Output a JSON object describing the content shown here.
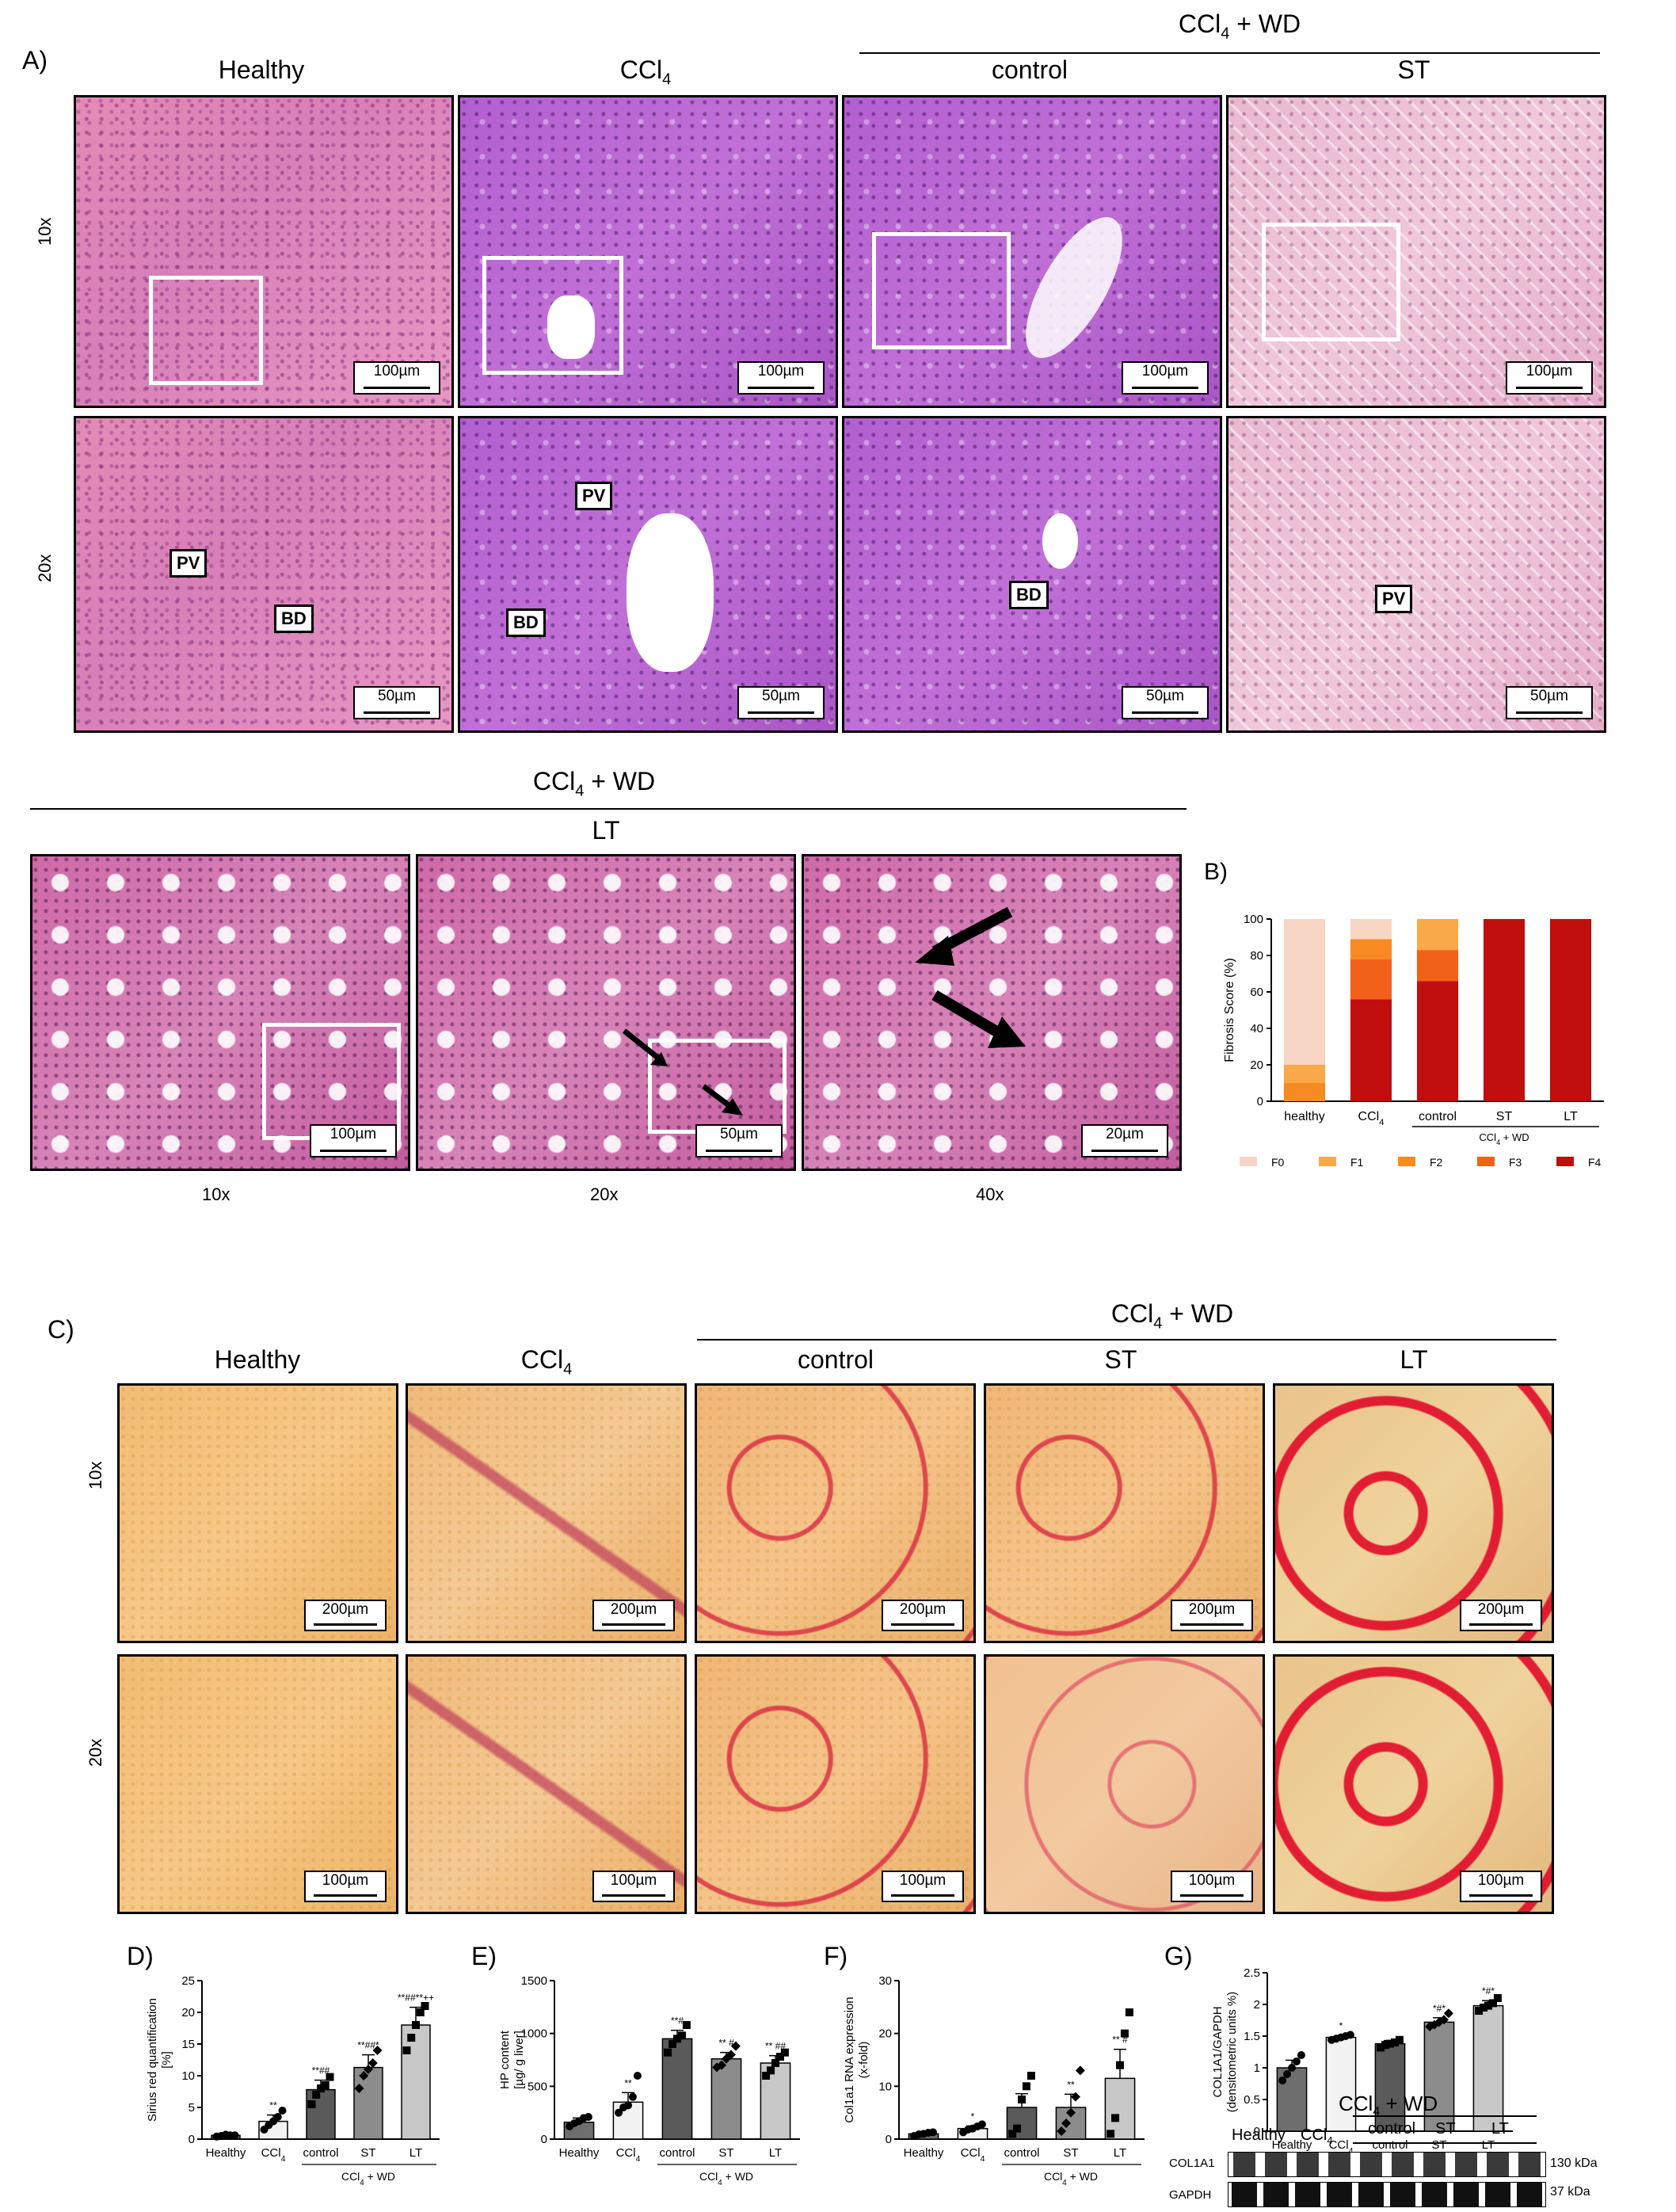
{
  "panelA": {
    "letter": "A)",
    "cols": [
      "Healthy",
      "CCl",
      "control",
      "ST"
    ],
    "ccl4_sub": "4",
    "group_label": "CCl",
    "group_suffix": " + WD",
    "rows": [
      "10x",
      "20x"
    ],
    "scale_10x": "100µm",
    "scale_20x": "50µm",
    "tags": {
      "pv": "PV",
      "bd": "BD"
    }
  },
  "panelA2": {
    "group_label": "CCl",
    "group_suffix": " + WD",
    "sub": "LT",
    "mags": [
      "10x",
      "20x",
      "40x"
    ],
    "scales": [
      "100µm",
      "50µm",
      "20µm"
    ]
  },
  "panelC": {
    "letter": "C)",
    "cols": [
      "Healthy",
      "CCl",
      "control",
      "ST",
      "LT"
    ],
    "group_label": "CCl",
    "group_suffix": " + WD",
    "rows": [
      "10x",
      "20x"
    ],
    "scale_10x": "200µm",
    "scale_20x": "100µm"
  },
  "chart_data": [
    {
      "panel": "B)",
      "type": "bar",
      "stacked": true,
      "ylabel": "Fibrosis Score (%)",
      "ylim": [
        0,
        100
      ],
      "yticks": [
        0,
        20,
        40,
        60,
        80,
        100
      ],
      "categories": [
        "healthy",
        "CCl4",
        "control",
        "ST",
        "LT"
      ],
      "group_label": "CCl4 + WD",
      "series": [
        {
          "name": "F0",
          "color": "#f7d5c4",
          "values": [
            80,
            11,
            0,
            0,
            0
          ]
        },
        {
          "name": "F1",
          "color": "#f9a94a",
          "values": [
            10,
            0,
            17,
            0,
            0
          ]
        },
        {
          "name": "F2",
          "color": "#f88a23",
          "values": [
            10,
            11,
            0,
            0,
            0
          ]
        },
        {
          "name": "F3",
          "color": "#f2611a",
          "values": [
            0,
            22,
            17,
            0,
            0
          ]
        },
        {
          "name": "F4",
          "color": "#c00d0d",
          "values": [
            0,
            56,
            66,
            100,
            100
          ]
        }
      ]
    },
    {
      "panel": "D)",
      "type": "bar",
      "ylabel": "Sirius red quantification [%]",
      "ylim": [
        0,
        25
      ],
      "yticks": [
        0,
        5,
        10,
        15,
        20,
        25
      ],
      "categories": [
        "Healthy",
        "CCl4",
        "control",
        "ST",
        "LT"
      ],
      "group_label": "CCl4 + WD",
      "values": [
        0.6,
        2.8,
        7.8,
        11.3,
        18.0
      ],
      "errors": [
        0.2,
        1.0,
        1.5,
        2.0,
        2.8
      ],
      "significance": [
        "",
        "**",
        "**##",
        "**##*",
        "**##**++"
      ],
      "points": [
        [
          0.4,
          0.5,
          0.7,
          0.6,
          0.6
        ],
        [
          1.5,
          2.2,
          2.8,
          3.5,
          4.5
        ],
        [
          5.5,
          7,
          8,
          8.5,
          9.8
        ],
        [
          8,
          10,
          11,
          12,
          14
        ],
        [
          14,
          16,
          18,
          20,
          21
        ]
      ]
    },
    {
      "panel": "E)",
      "type": "bar",
      "ylabel": "HP content [µg/ g liver]",
      "ylim": [
        0,
        1500
      ],
      "yticks": [
        0,
        500,
        1000,
        1500
      ],
      "categories": [
        "Healthy",
        "CCl4",
        "control",
        "ST",
        "LT"
      ],
      "group_label": "CCl4 + WD",
      "values": [
        160,
        350,
        950,
        760,
        720
      ],
      "errors": [
        40,
        90,
        80,
        60,
        70
      ],
      "significance": [
        "",
        "**",
        "**#",
        "** #",
        "** ##"
      ],
      "points": [
        [
          120,
          150,
          170,
          200,
          210
        ],
        [
          250,
          300,
          320,
          400,
          600
        ],
        [
          820,
          900,
          950,
          980,
          1080
        ],
        [
          680,
          700,
          760,
          800,
          880
        ],
        [
          600,
          650,
          720,
          780,
          820
        ]
      ]
    },
    {
      "panel": "F)",
      "type": "bar",
      "ylabel": "Col1a1 RNA expression (x-fold)",
      "ylim": [
        0,
        30
      ],
      "yticks": [
        0,
        10,
        20,
        30
      ],
      "categories": [
        "Healthy",
        "CCl4",
        "control",
        "ST",
        "LT"
      ],
      "group_label": "CCl4 + WD",
      "values": [
        1.0,
        2.0,
        6.0,
        6.0,
        11.5
      ],
      "errors": [
        0.3,
        0.5,
        2.6,
        2.5,
        5.5
      ],
      "significance": [
        "",
        "*",
        "",
        "**",
        "** #"
      ],
      "points": [
        [
          0.6,
          0.9,
          1.0,
          1.2,
          1.3
        ],
        [
          1.3,
          1.8,
          2.0,
          2.4,
          2.8
        ],
        [
          1.0,
          2.0,
          7.5,
          10,
          12
        ],
        [
          1.5,
          3,
          5,
          8,
          13
        ],
        [
          1,
          4,
          14,
          20,
          24
        ]
      ]
    },
    {
      "panel": "G)",
      "type": "bar",
      "ylabel": "COL1A1/GAPDH (densitometric units %)",
      "ylim": [
        0,
        2.5
      ],
      "yticks": [
        0,
        0.5,
        1.0,
        1.5,
        2.0,
        2.5
      ],
      "categories": [
        "Healthy",
        "CCl4",
        "control",
        "ST",
        "LT"
      ],
      "group_label": "CCl4 + WD",
      "values": [
        1.0,
        1.48,
        1.38,
        1.72,
        1.98
      ],
      "errors": [
        0.12,
        0.03,
        0.05,
        0.07,
        0.08
      ],
      "significance": [
        "",
        "*",
        "",
        "*#*",
        "*#*"
      ],
      "points": [
        [
          0.8,
          0.9,
          1.0,
          1.1,
          1.2
        ],
        [
          1.44,
          1.46,
          1.48,
          1.5,
          1.52
        ],
        [
          1.32,
          1.36,
          1.38,
          1.4,
          1.44
        ],
        [
          1.65,
          1.68,
          1.72,
          1.76,
          1.86
        ],
        [
          1.9,
          1.95,
          1.98,
          2.02,
          2.1
        ]
      ]
    }
  ],
  "western": {
    "lanes": [
      "Healthy",
      "CCl",
      "control",
      "ST",
      "LT"
    ],
    "group_label": "CCl",
    "group_suffix": " + WD",
    "rows": [
      {
        "protein": "COL1A1",
        "size": "130 kDa"
      },
      {
        "protein": "GAPDH",
        "size": "37 kDa"
      }
    ]
  }
}
